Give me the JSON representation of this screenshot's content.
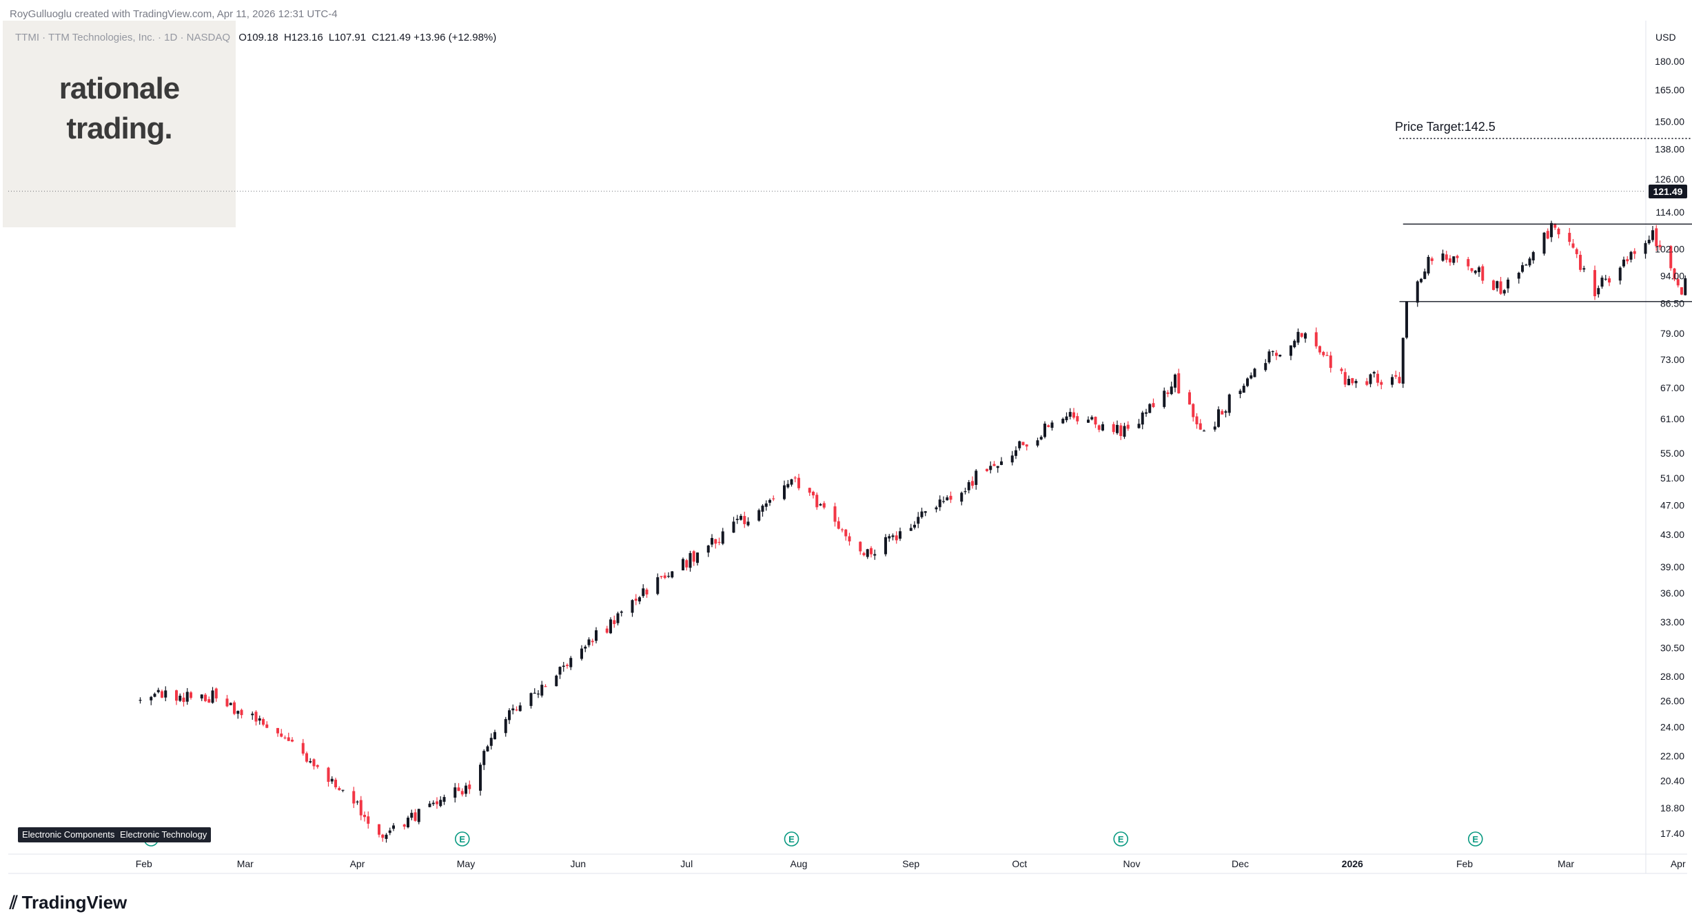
{
  "credit": "RoyGulluoglu created with TradingView.com, Apr 11, 2026 12:31 UTC-4",
  "legend": {
    "symbol": "TTMI · TTM Technologies, Inc. · 1D · NASDAQ",
    "open_label": "O",
    "open": "109.18",
    "high_label": "H",
    "high": "123.16",
    "low_label": "L",
    "low": "107.91",
    "close_label": "C",
    "close": "121.49",
    "change": "+13.96 (+12.98%)"
  },
  "brand": {
    "line1": "rationale",
    "line2": "trading."
  },
  "currency": "USD",
  "last_price": "121.49",
  "annotation": "Price Target:142.5",
  "industries": [
    "Electronic Components",
    "Electronic Technology"
  ],
  "logo": "TradingView",
  "colors": {
    "up": "#131722",
    "down": "#f23645",
    "earnings": "#089981",
    "alert": "#9c27b0"
  },
  "chart_data": {
    "type": "candlestick",
    "scale": "log",
    "y_ticks": [
      17.4,
      18.8,
      20.4,
      22.0,
      24.0,
      26.0,
      28.0,
      30.5,
      33.0,
      36.0,
      39.0,
      43.0,
      47.0,
      51.0,
      55.0,
      61.0,
      67.0,
      73.0,
      79.0,
      86.5,
      94.0,
      102.0,
      114.0,
      126.0,
      138.0,
      150.0,
      165.0,
      180.0
    ],
    "x_ticks": [
      "Feb",
      "Mar",
      "Apr",
      "May",
      "Jun",
      "Jul",
      "Aug",
      "Sep",
      "Oct",
      "Nov",
      "Dec",
      "2026",
      "Feb",
      "Mar",
      "Apr"
    ],
    "series": [
      {
        "date": "2025-01-31",
        "close": 26.6
      },
      {
        "date": "2025-02-20",
        "close": 26.3
      },
      {
        "date": "2025-03-14",
        "close": 23.0
      },
      {
        "date": "2025-04-08",
        "close": 17.4
      },
      {
        "date": "2025-05-02",
        "close": 20.2
      },
      {
        "date": "2025-05-12",
        "close": 24.8
      },
      {
        "date": "2025-05-30",
        "close": 29.4
      },
      {
        "date": "2025-06-20",
        "close": 36.5
      },
      {
        "date": "2025-07-10",
        "close": 42.5
      },
      {
        "date": "2025-07-31",
        "close": 50.5
      },
      {
        "date": "2025-08-20",
        "close": 40.5
      },
      {
        "date": "2025-09-10",
        "close": 47.5
      },
      {
        "date": "2025-09-30",
        "close": 56.0
      },
      {
        "date": "2025-10-15",
        "close": 62.0
      },
      {
        "date": "2025-10-31",
        "close": 58.5
      },
      {
        "date": "2025-11-13",
        "close": 68.5
      },
      {
        "date": "2025-11-21",
        "close": 58.0
      },
      {
        "date": "2025-12-04",
        "close": 70.5
      },
      {
        "date": "2025-12-18",
        "close": 79.5
      },
      {
        "date": "2025-12-30",
        "close": 69.0
      },
      {
        "date": "2026-01-14",
        "close": 69.0
      },
      {
        "date": "2026-01-16",
        "close": 88.0
      },
      {
        "date": "2026-01-23",
        "close": 100.0
      },
      {
        "date": "2026-02-04",
        "close": 96.0
      },
      {
        "date": "2026-02-11",
        "close": 90.0
      },
      {
        "date": "2026-02-26",
        "close": 110.0
      },
      {
        "date": "2026-03-09",
        "close": 90.0
      },
      {
        "date": "2026-03-25",
        "close": 107.0
      },
      {
        "date": "2026-04-02",
        "close": 90.0
      },
      {
        "date": "2026-04-09",
        "close": 108.0
      },
      {
        "date": "2026-04-10",
        "open": 109.18,
        "high": 123.16,
        "low": 107.91,
        "close": 121.49
      }
    ],
    "price_target": 142.5,
    "range_top": 110.0,
    "range_bottom": 87.0,
    "last_price": 121.49
  }
}
